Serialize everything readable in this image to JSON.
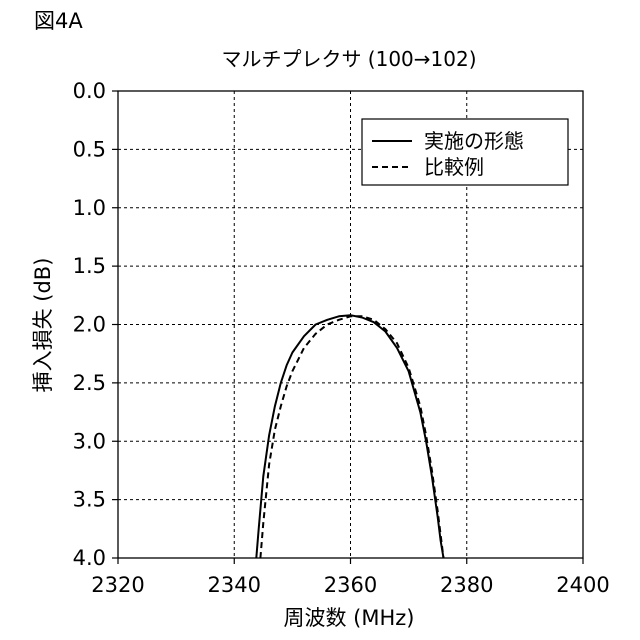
{
  "figure_label": "図4A",
  "chart_data": {
    "type": "line",
    "title": "マルチプレクサ (100→102)",
    "xlabel": "周波数 (MHz)",
    "ylabel": "挿入損失 (dB)",
    "xlim": [
      2320,
      2400
    ],
    "ylim": [
      0.0,
      4.0
    ],
    "y_inverted": true,
    "grid": true,
    "grid_style": "dashed",
    "legend_position": "top-right",
    "x_ticks": [
      2320,
      2340,
      2360,
      2380,
      2400
    ],
    "x_tick_labels": [
      "2320",
      "2340",
      "2360",
      "2380",
      "2400"
    ],
    "y_ticks": [
      0.0,
      0.5,
      1.0,
      1.5,
      2.0,
      2.5,
      3.0,
      3.5,
      4.0
    ],
    "y_tick_labels": [
      "0.0",
      "0.5",
      "1.0",
      "1.5",
      "2.0",
      "2.5",
      "3.0",
      "3.5",
      "4.0"
    ],
    "series": [
      {
        "name": "実施の形態",
        "line_style": "solid",
        "color": "#000000",
        "x": [
          2343.8,
          2344.2,
          2345,
          2346,
          2347,
          2348,
          2349,
          2350,
          2352,
          2354,
          2356,
          2358,
          2360,
          2362,
          2364,
          2366,
          2368,
          2370,
          2372,
          2373,
          2374,
          2375,
          2375.5,
          2376
        ],
        "y": [
          4.0,
          3.75,
          3.3,
          2.95,
          2.7,
          2.5,
          2.35,
          2.24,
          2.1,
          2.0,
          1.96,
          1.93,
          1.92,
          1.94,
          1.98,
          2.06,
          2.2,
          2.4,
          2.75,
          3.0,
          3.3,
          3.65,
          3.85,
          4.0
        ]
      },
      {
        "name": "比較例",
        "line_style": "dashed",
        "color": "#000000",
        "x": [
          2344.5,
          2345,
          2346,
          2347,
          2348,
          2349,
          2350,
          2352,
          2354,
          2356,
          2358,
          2360,
          2362,
          2364,
          2366,
          2368,
          2370,
          2372,
          2373,
          2374,
          2375,
          2376
        ],
        "y": [
          4.0,
          3.7,
          3.2,
          2.9,
          2.7,
          2.53,
          2.4,
          2.2,
          2.08,
          2.0,
          1.96,
          1.93,
          1.93,
          1.96,
          2.04,
          2.16,
          2.37,
          2.7,
          2.95,
          3.25,
          3.6,
          4.0
        ]
      }
    ]
  }
}
